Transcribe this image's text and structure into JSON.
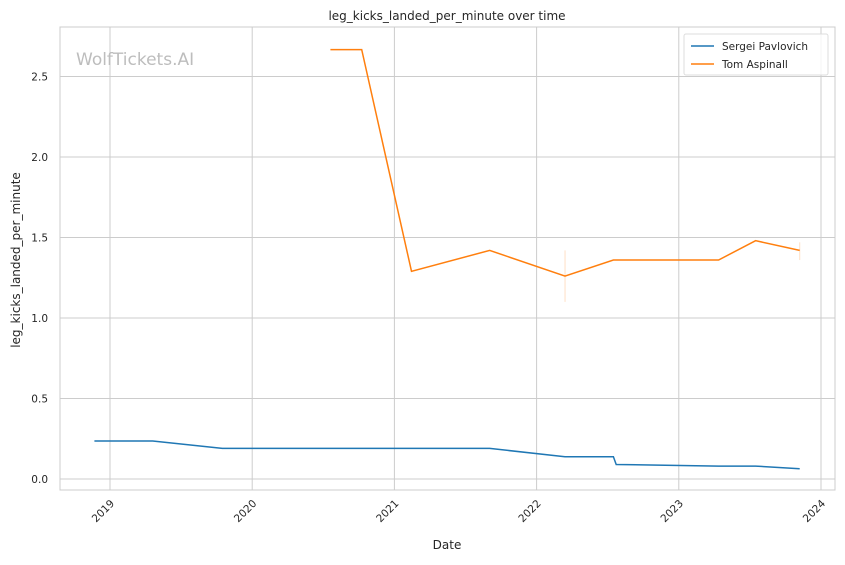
{
  "chart_data": {
    "type": "line",
    "title": "leg_kicks_landed_per_minute over time",
    "xlabel": "Date",
    "ylabel": "leg_kicks_landed_per_minute",
    "watermark": "WolfTickets.AI",
    "xlim": [
      2018.65,
      2024.1
    ],
    "ylim": [
      -0.07,
      2.8
    ],
    "x_ticks": [
      2019,
      2020,
      2021,
      2022,
      2023,
      2024
    ],
    "x_tick_labels": [
      "2019",
      "2020",
      "2021",
      "2022",
      "2023",
      "2024"
    ],
    "y_ticks": [
      0.0,
      0.5,
      1.0,
      1.5,
      2.0,
      2.5
    ],
    "y_tick_labels": [
      "0.0",
      "0.5",
      "1.0",
      "1.5",
      "2.0",
      "2.5"
    ],
    "grid": true,
    "legend_position": "top-right",
    "series": [
      {
        "name": "Sergei Pavlovich",
        "color": "#1f77b4",
        "x": [
          2018.89,
          2019.3,
          2019.79,
          2021.67,
          2022.2,
          2022.54,
          2022.56,
          2023.28,
          2023.54,
          2023.85
        ],
        "y": [
          0.236,
          0.236,
          0.19,
          0.19,
          0.138,
          0.138,
          0.09,
          0.08,
          0.08,
          0.064
        ],
        "ci": []
      },
      {
        "name": "Tom Aspinall",
        "color": "#ff7f0e",
        "x": [
          2020.55,
          2020.77,
          2021.12,
          2021.67,
          2022.2,
          2022.54,
          2023.28,
          2023.54,
          2023.85
        ],
        "y": [
          2.667,
          2.667,
          1.29,
          1.42,
          1.26,
          1.36,
          1.36,
          1.48,
          1.42
        ],
        "ci": [
          {
            "x": 2022.2,
            "low": 1.1,
            "high": 1.42
          },
          {
            "x": 2023.85,
            "low": 1.36,
            "high": 1.47
          }
        ]
      }
    ]
  }
}
